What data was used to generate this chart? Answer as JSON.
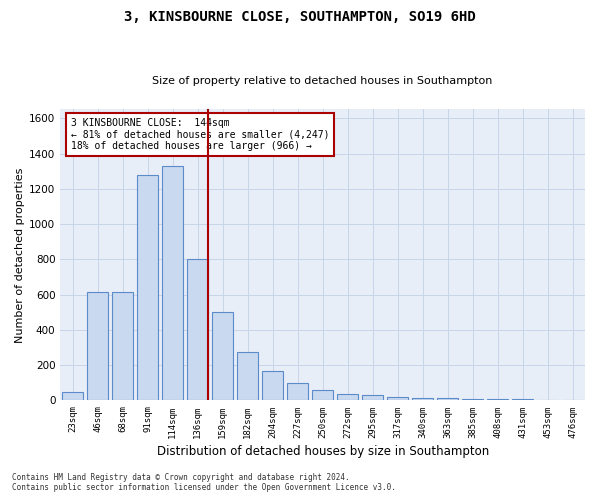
{
  "title": "3, KINSBOURNE CLOSE, SOUTHAMPTON, SO19 6HD",
  "subtitle": "Size of property relative to detached houses in Southampton",
  "xlabel": "Distribution of detached houses by size in Southampton",
  "ylabel": "Number of detached properties",
  "bar_labels": [
    "23sqm",
    "46sqm",
    "68sqm",
    "91sqm",
    "114sqm",
    "136sqm",
    "159sqm",
    "182sqm",
    "204sqm",
    "227sqm",
    "250sqm",
    "272sqm",
    "295sqm",
    "317sqm",
    "340sqm",
    "363sqm",
    "385sqm",
    "408sqm",
    "431sqm",
    "453sqm",
    "476sqm"
  ],
  "bar_values": [
    50,
    615,
    615,
    1280,
    1330,
    800,
    500,
    275,
    165,
    100,
    60,
    35,
    30,
    20,
    15,
    15,
    10,
    10,
    10,
    5,
    5
  ],
  "bar_color": "#c9d9f0",
  "bar_edge_color": "#5b8bc9",
  "grid_color": "#c8d4e8",
  "background_color": "#e8eef8",
  "vline_color": "#aa0000",
  "vline_pos": 4.5,
  "annotation_title": "3 KINSBOURNE CLOSE:  144sqm",
  "annotation_line1": "← 81% of detached houses are smaller (4,247)",
  "annotation_line2": "18% of detached houses are larger (966) →",
  "annotation_box_color": "#aa0000",
  "annotation_bg": "#ffffff",
  "ylim": [
    0,
    1650
  ],
  "yticks": [
    0,
    200,
    400,
    600,
    800,
    1000,
    1200,
    1400,
    1600
  ],
  "footer1": "Contains HM Land Registry data © Crown copyright and database right 2024.",
  "footer2": "Contains public sector information licensed under the Open Government Licence v3.0."
}
